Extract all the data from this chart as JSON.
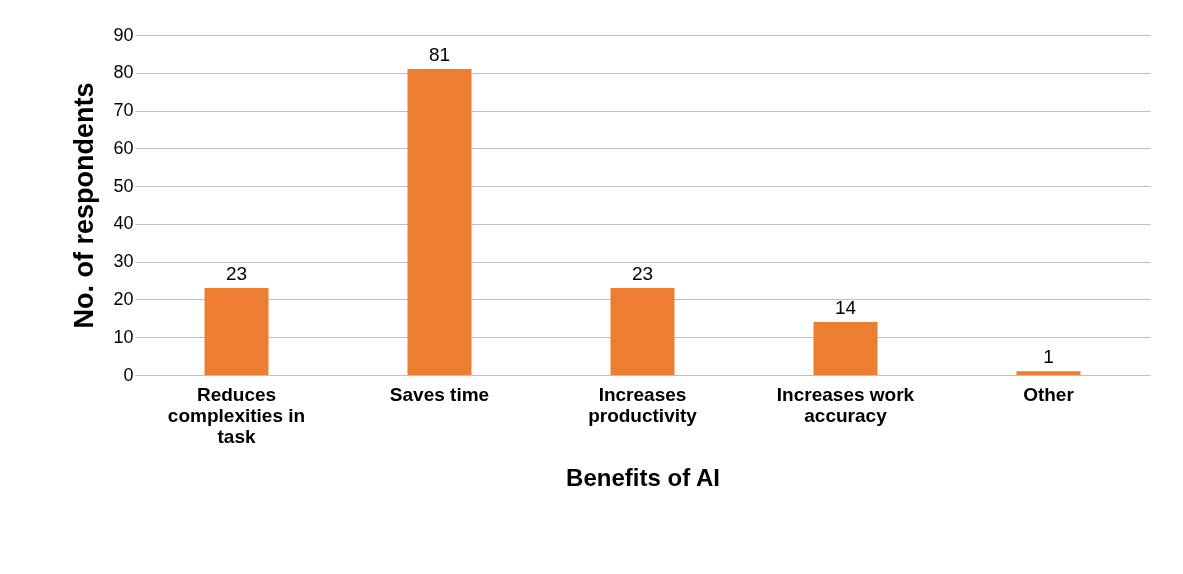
{
  "chart_data": {
    "type": "bar",
    "xlabel": "Benefits of AI",
    "ylabel": "No. of respondents",
    "categories": [
      "Reduces complexities in task",
      "Saves time",
      "Increases productivity",
      "Increases work accuracy",
      "Other"
    ],
    "values": [
      23,
      81,
      23,
      14,
      1
    ],
    "color": "#ed7d31",
    "ylim": [
      0,
      90
    ],
    "yticks": [
      0,
      10,
      20,
      30,
      40,
      50,
      60,
      70,
      80,
      90
    ],
    "grid": "y",
    "data_labels": true
  }
}
